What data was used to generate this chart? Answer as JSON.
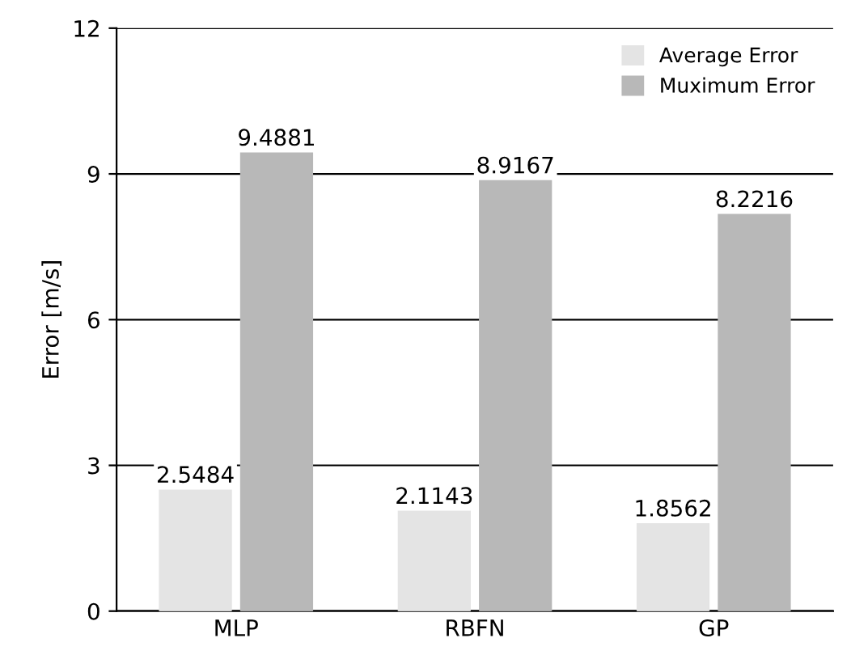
{
  "chart_data": {
    "type": "bar",
    "ylabel": "Error [m/s]",
    "categories": [
      "MLP",
      "RBFN",
      "GP"
    ],
    "series": [
      {
        "name": "Average Error",
        "color": "#e4e4e4",
        "values": [
          2.5484,
          2.1143,
          1.8562
        ]
      },
      {
        "name": "Muximum Error",
        "color": "#b8b8b8",
        "values": [
          9.4881,
          8.9167,
          8.2216
        ]
      }
    ],
    "ylim": [
      0,
      12
    ],
    "yticks": [
      0,
      3,
      6,
      9,
      12
    ],
    "grid": "y",
    "legend": "top right",
    "data_labels": true
  }
}
